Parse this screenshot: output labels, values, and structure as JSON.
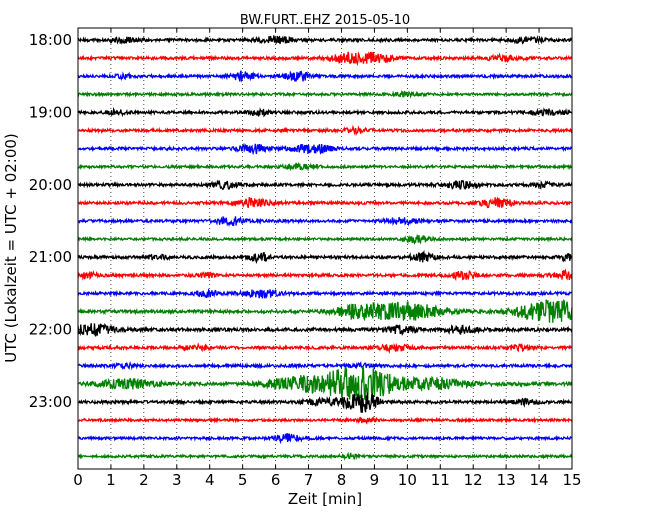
{
  "chart_data": {
    "type": "line",
    "title": "BW.FURT..EHZ 2015-05-10",
    "xlabel": "Zeit  [min]",
    "ylabel": "UTC (Lokalzeit = UTC + 02:00)",
    "xlim": [
      0,
      15
    ],
    "x_ticks": [
      "0",
      "1",
      "2",
      "3",
      "4",
      "5",
      "6",
      "7",
      "8",
      "9",
      "10",
      "11",
      "12",
      "13",
      "14",
      "15"
    ],
    "y_tick_labels": [
      {
        "label": "18:00",
        "trace": 0
      },
      {
        "label": "19:00",
        "trace": 4
      },
      {
        "label": "20:00",
        "trace": 8
      },
      {
        "label": "21:00",
        "trace": 12
      },
      {
        "label": "22:00",
        "trace": 16
      },
      {
        "label": "23:00",
        "trace": 20
      }
    ],
    "vertical_grid": "dotted at each minute",
    "trace_interval_minutes": 15,
    "trace_colors": [
      "#000000",
      "#ff0000",
      "#0000ff",
      "#008000"
    ],
    "traces": [
      {
        "start": "18:00",
        "noise": 0.25,
        "events": [
          {
            "t": 1.4,
            "a": 0.5,
            "w": 0.4
          },
          {
            "t": 6.0,
            "a": 0.6,
            "w": 0.5
          },
          {
            "t": 13.6,
            "a": 0.4,
            "w": 0.5
          }
        ]
      },
      {
        "start": "18:15",
        "noise": 0.25,
        "events": [
          {
            "t": 8.3,
            "a": 0.9,
            "w": 0.6
          },
          {
            "t": 9.1,
            "a": 0.7,
            "w": 0.5
          },
          {
            "t": 12.9,
            "a": 0.4,
            "w": 0.5
          }
        ]
      },
      {
        "start": "18:30",
        "noise": 0.25,
        "events": [
          {
            "t": 5.0,
            "a": 0.9,
            "w": 0.3
          },
          {
            "t": 6.7,
            "a": 0.8,
            "w": 0.4
          },
          {
            "t": 1.4,
            "a": 0.3,
            "w": 0.3
          }
        ]
      },
      {
        "start": "18:45",
        "noise": 0.22,
        "events": [
          {
            "t": 9.9,
            "a": 0.3,
            "w": 0.4
          }
        ]
      },
      {
        "start": "19:00",
        "noise": 0.25,
        "events": [
          {
            "t": 1.2,
            "a": 0.4,
            "w": 0.3
          },
          {
            "t": 5.5,
            "a": 0.5,
            "w": 0.3
          },
          {
            "t": 14.2,
            "a": 0.5,
            "w": 0.5
          }
        ]
      },
      {
        "start": "19:15",
        "noise": 0.25,
        "events": [
          {
            "t": 8.4,
            "a": 0.4,
            "w": 0.4
          }
        ]
      },
      {
        "start": "19:30",
        "noise": 0.25,
        "events": [
          {
            "t": 5.3,
            "a": 0.8,
            "w": 0.4
          },
          {
            "t": 7.1,
            "a": 0.8,
            "w": 0.6
          }
        ]
      },
      {
        "start": "19:45",
        "noise": 0.22,
        "events": [
          {
            "t": 6.8,
            "a": 0.4,
            "w": 0.5
          }
        ]
      },
      {
        "start": "20:00",
        "noise": 0.25,
        "events": [
          {
            "t": 4.4,
            "a": 0.7,
            "w": 0.4
          },
          {
            "t": 11.6,
            "a": 0.6,
            "w": 0.5
          },
          {
            "t": 14.1,
            "a": 0.4,
            "w": 0.3
          }
        ]
      },
      {
        "start": "20:15",
        "noise": 0.25,
        "events": [
          {
            "t": 5.3,
            "a": 0.8,
            "w": 0.5
          },
          {
            "t": 12.7,
            "a": 0.8,
            "w": 0.5
          }
        ]
      },
      {
        "start": "20:30",
        "noise": 0.25,
        "events": [
          {
            "t": 4.6,
            "a": 0.8,
            "w": 0.4
          },
          {
            "t": 9.8,
            "a": 0.5,
            "w": 0.5
          }
        ]
      },
      {
        "start": "20:45",
        "noise": 0.22,
        "events": [
          {
            "t": 10.3,
            "a": 0.6,
            "w": 0.4
          }
        ]
      },
      {
        "start": "21:00",
        "noise": 0.25,
        "events": [
          {
            "t": 2.4,
            "a": 0.4,
            "w": 0.3
          },
          {
            "t": 5.5,
            "a": 0.8,
            "w": 0.3
          },
          {
            "t": 10.5,
            "a": 0.7,
            "w": 0.4
          },
          {
            "t": 14.9,
            "a": 0.5,
            "w": 0.3
          }
        ]
      },
      {
        "start": "21:15",
        "noise": 0.25,
        "events": [
          {
            "t": 0.3,
            "a": 0.5,
            "w": 0.3
          },
          {
            "t": 3.9,
            "a": 0.4,
            "w": 0.3
          },
          {
            "t": 11.7,
            "a": 0.6,
            "w": 0.4
          },
          {
            "t": 14.8,
            "a": 0.7,
            "w": 0.4
          }
        ]
      },
      {
        "start": "21:30",
        "noise": 0.25,
        "events": [
          {
            "t": 3.9,
            "a": 0.6,
            "w": 0.3
          },
          {
            "t": 5.6,
            "a": 0.8,
            "w": 0.5
          }
        ]
      },
      {
        "start": "21:45",
        "noise": 0.28,
        "events": [
          {
            "t": 8.5,
            "a": 1.2,
            "w": 0.7
          },
          {
            "t": 10.0,
            "a": 1.6,
            "w": 1.0
          },
          {
            "t": 14.4,
            "a": 2.0,
            "w": 1.0
          }
        ]
      },
      {
        "start": "22:00",
        "noise": 0.3,
        "events": [
          {
            "t": 0.4,
            "a": 1.0,
            "w": 0.6
          },
          {
            "t": 9.8,
            "a": 0.6,
            "w": 0.5
          },
          {
            "t": 11.6,
            "a": 0.5,
            "w": 0.5
          }
        ]
      },
      {
        "start": "22:15",
        "noise": 0.25,
        "events": [
          {
            "t": 3.6,
            "a": 0.4,
            "w": 0.4
          },
          {
            "t": 9.6,
            "a": 0.5,
            "w": 0.5
          },
          {
            "t": 13.4,
            "a": 0.5,
            "w": 0.4
          }
        ]
      },
      {
        "start": "22:30",
        "noise": 0.25,
        "events": [
          {
            "t": 1.4,
            "a": 0.4,
            "w": 0.3
          },
          {
            "t": 8.6,
            "a": 0.3,
            "w": 0.4
          }
        ]
      },
      {
        "start": "22:45",
        "noise": 0.3,
        "events": [
          {
            "t": 1.5,
            "a": 0.8,
            "w": 0.8
          },
          {
            "t": 6.5,
            "a": 0.9,
            "w": 0.8
          },
          {
            "t": 8.5,
            "a": 3.0,
            "w": 1.3
          },
          {
            "t": 11.0,
            "a": 0.9,
            "w": 0.8
          }
        ]
      },
      {
        "start": "23:00",
        "noise": 0.25,
        "events": [
          {
            "t": 7.4,
            "a": 0.5,
            "w": 0.6
          },
          {
            "t": 8.6,
            "a": 1.8,
            "w": 0.5
          },
          {
            "t": 13.6,
            "a": 0.4,
            "w": 0.4
          }
        ]
      },
      {
        "start": "23:15",
        "noise": 0.22,
        "events": [
          {
            "t": 8.6,
            "a": 0.4,
            "w": 0.4
          }
        ]
      },
      {
        "start": "23:30",
        "noise": 0.22,
        "events": [
          {
            "t": 6.4,
            "a": 0.8,
            "w": 0.4
          }
        ]
      },
      {
        "start": "23:45",
        "noise": 0.22,
        "events": [
          {
            "t": 8.3,
            "a": 0.3,
            "w": 0.3
          }
        ]
      }
    ]
  }
}
